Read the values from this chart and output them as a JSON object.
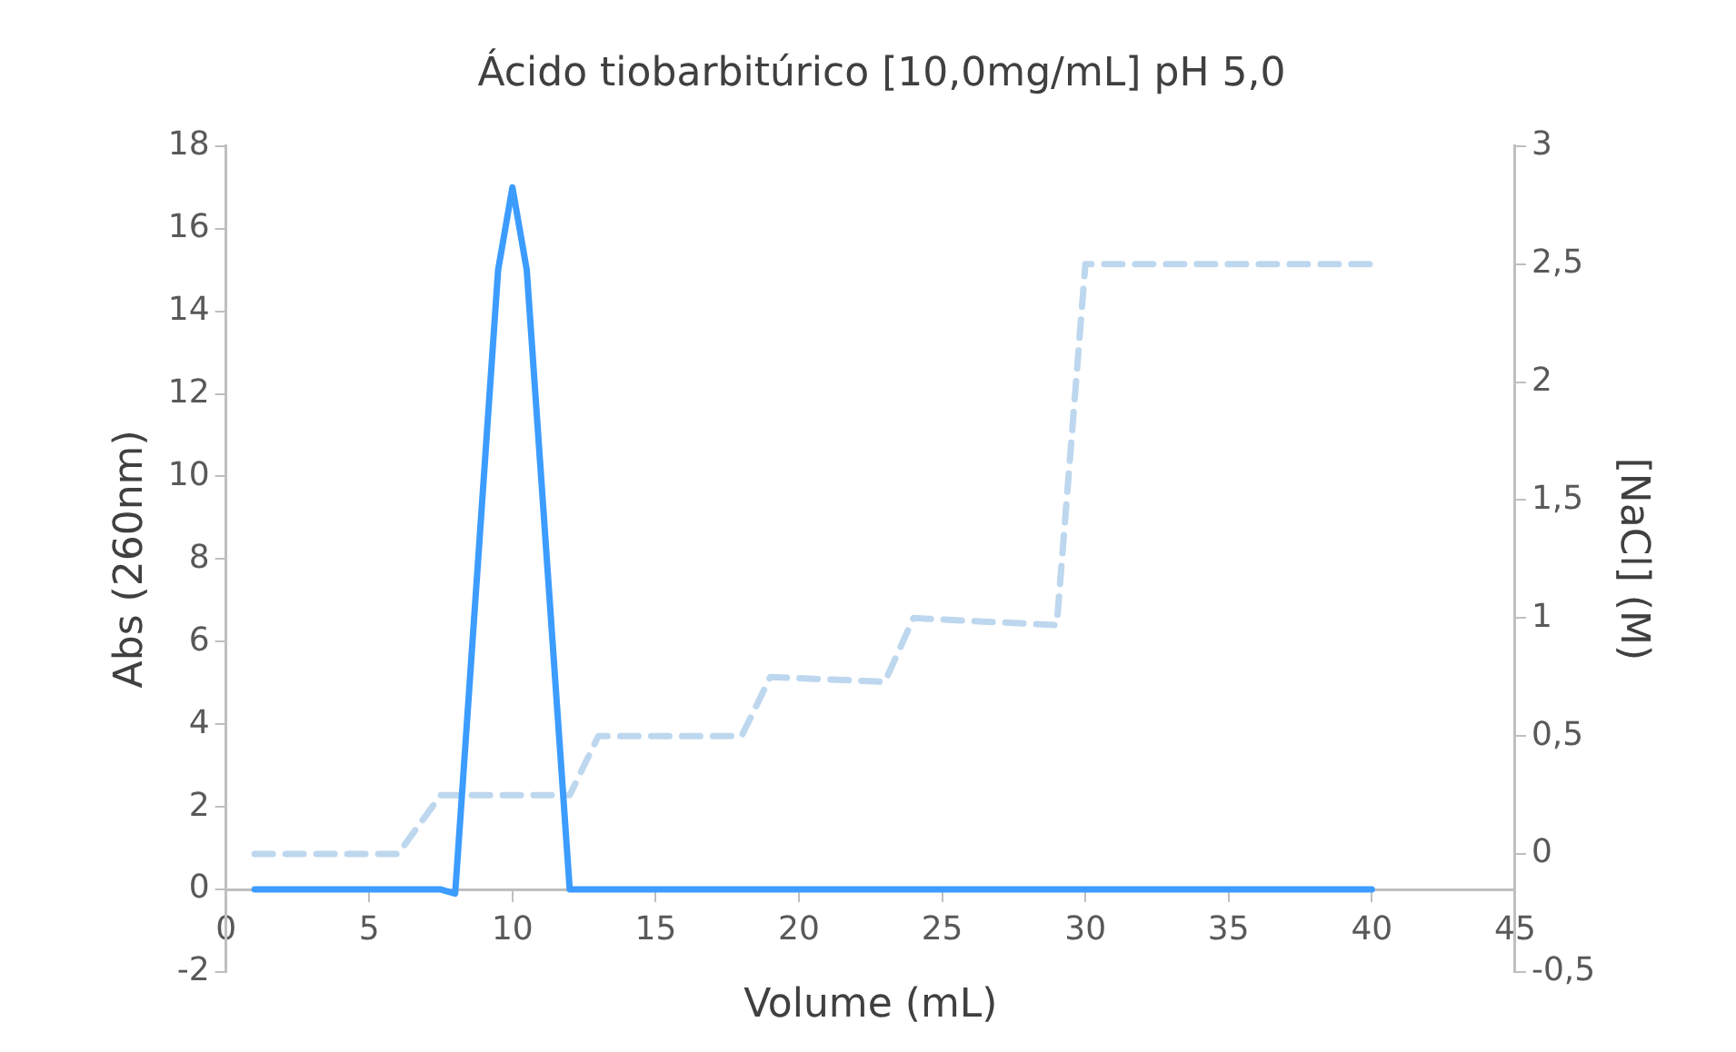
{
  "chart_data": {
    "type": "line",
    "title": "Ácido tiobarbitúrico [10,0mg/mL] pH 5,0",
    "xlabel": "Volume (mL)",
    "ylabel": "Abs (260nm)",
    "y2label": "[NaCl] (M)",
    "series": [
      {
        "color": "#3c9cff",
        "line_style": "solid",
        "x": [
          1,
          3,
          5,
          7,
          7.5,
          8,
          9.5,
          10,
          10.5,
          12,
          15,
          20,
          25,
          30,
          35,
          40
        ],
        "values": [
          0,
          0,
          0,
          0,
          0,
          -0.1,
          15,
          17,
          15,
          0,
          0,
          0,
          0,
          0,
          0,
          0
        ]
      },
      {
        "color": "#bdd7ee",
        "axis": "y2",
        "line_style": "dashed",
        "x": [
          1,
          6,
          7.5,
          12,
          13,
          18,
          19,
          23,
          24,
          29,
          30,
          40
        ],
        "values": [
          0,
          0,
          0.25,
          0.25,
          0.5,
          0.5,
          0.75,
          0.73,
          1,
          0.97,
          2.5,
          2.5
        ]
      }
    ],
    "xlim": [
      0,
      45
    ],
    "xticks": [
      0,
      5,
      10,
      15,
      20,
      25,
      30,
      35,
      40,
      45
    ],
    "ylim": [
      -2,
      18
    ],
    "yticks": [
      -2,
      0,
      2,
      4,
      6,
      8,
      10,
      12,
      14,
      16,
      18
    ],
    "y2lim": [
      -0.5,
      3
    ],
    "y2ticks": [
      {
        "value": -0.5,
        "label": "-0,5"
      },
      0,
      {
        "value": 0.5,
        "label": "0,5"
      },
      1,
      {
        "value": 1.5,
        "label": "1,5"
      },
      2,
      {
        "value": 2.5,
        "label": "2,5"
      },
      3
    ],
    "grid": false,
    "legend": false,
    "marker": "none"
  }
}
